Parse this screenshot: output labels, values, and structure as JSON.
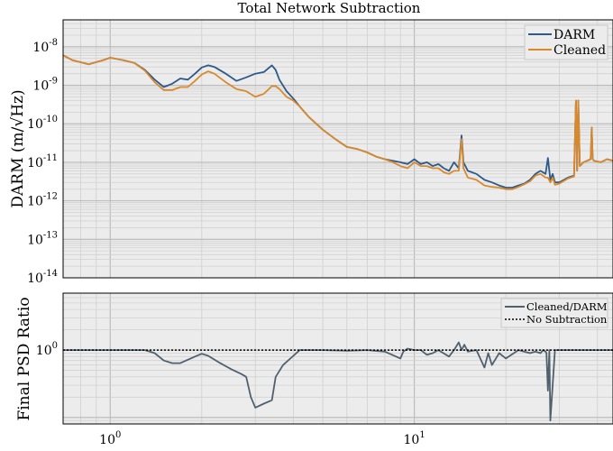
{
  "chart_data": [
    {
      "type": "line",
      "title": "Total Network Subtraction",
      "ylabel": "DARM (m/√Hz)",
      "xscale": "log",
      "yscale": "log",
      "xlim": [
        0.7,
        45
      ],
      "ylim": [
        1e-14,
        5e-08
      ],
      "grid": true,
      "legend": "top-right",
      "y_ticks": [
        {
          "v": 1e-14,
          "m": "10",
          "e": "-14"
        },
        {
          "v": 1e-13,
          "m": "10",
          "e": "-13"
        },
        {
          "v": 1e-12,
          "m": "10",
          "e": "-12"
        },
        {
          "v": 1e-11,
          "m": "10",
          "e": "-11"
        },
        {
          "v": 1e-10,
          "m": "10",
          "e": "-10"
        },
        {
          "v": 1e-09,
          "m": "10",
          "e": "-9"
        },
        {
          "v": 1e-08,
          "m": "10",
          "e": "-8"
        }
      ],
      "series": [
        {
          "name": "DARM",
          "color": "#2d5a8a",
          "x": [
            0.7,
            0.75,
            0.85,
            0.95,
            1.0,
            1.1,
            1.2,
            1.3,
            1.4,
            1.5,
            1.6,
            1.7,
            1.8,
            1.9,
            2.0,
            2.1,
            2.2,
            2.4,
            2.6,
            2.8,
            3.0,
            3.2,
            3.4,
            3.5,
            3.6,
            3.8,
            4.0,
            4.2,
            4.5,
            5.0,
            5.5,
            6.0,
            6.5,
            7.0,
            7.5,
            8.0,
            8.5,
            9.0,
            9.5,
            10.0,
            10.5,
            11.0,
            11.5,
            12.0,
            12.5,
            13.0,
            13.5,
            14.0,
            14.3,
            14.5,
            15.0,
            16.0,
            17.0,
            18.0,
            19.0,
            20.0,
            21.0,
            22.0,
            23.0,
            24.0,
            25.0,
            26.0,
            27.0,
            27.5,
            28.0,
            28.5,
            29.0,
            30.0,
            32.0,
            33.5,
            34.0,
            34.3,
            34.6,
            35.0,
            36.0,
            37.0,
            38.0,
            38.3,
            38.6,
            39.0,
            41.0,
            43.0,
            45.0
          ],
          "values": [
            6e-09,
            4.5e-09,
            3.5e-09,
            4.5e-09,
            5.2e-09,
            4.5e-09,
            3.8e-09,
            2.5e-09,
            1.4e-09,
            9e-10,
            1.1e-09,
            1.5e-09,
            1.4e-09,
            2e-09,
            2.9e-09,
            3.3e-09,
            3e-09,
            2e-09,
            1.3e-09,
            1.6e-09,
            2e-09,
            2.2e-09,
            3.3e-09,
            2.5e-09,
            1.4e-09,
            7e-10,
            4.5e-10,
            2.8e-10,
            1.5e-10,
            7e-11,
            4e-11,
            2.5e-11,
            2.2e-11,
            1.8e-11,
            1.4e-11,
            1.2e-11,
            1.1e-11,
            1e-11,
            9e-12,
            1.2e-11,
            9e-12,
            1e-11,
            8e-12,
            9e-12,
            7e-12,
            6e-12,
            1e-11,
            7e-12,
            5e-11,
            1e-11,
            6e-12,
            5e-12,
            3.5e-12,
            3e-12,
            2.5e-12,
            2.2e-12,
            2.2e-12,
            2.5e-12,
            2.8e-12,
            3.5e-12,
            5e-12,
            6e-12,
            5e-12,
            1.3e-11,
            3.5e-12,
            5e-12,
            3e-12,
            3e-12,
            4e-12,
            4.5e-12,
            4e-10,
            6e-12,
            4e-10,
            8e-12,
            1e-11,
            1.1e-11,
            1.2e-11,
            8e-11,
            1.2e-11,
            1.1e-11,
            1e-11,
            1.2e-11,
            1.1e-11
          ]
        },
        {
          "name": "Cleaned",
          "color": "#d9892c",
          "x": [
            0.7,
            0.75,
            0.85,
            0.95,
            1.0,
            1.1,
            1.2,
            1.3,
            1.4,
            1.5,
            1.6,
            1.7,
            1.8,
            1.9,
            2.0,
            2.1,
            2.2,
            2.4,
            2.6,
            2.8,
            3.0,
            3.2,
            3.4,
            3.5,
            3.6,
            3.8,
            4.0,
            4.2,
            4.5,
            5.0,
            5.5,
            6.0,
            6.5,
            7.0,
            7.5,
            8.0,
            8.5,
            9.0,
            9.5,
            10.0,
            10.5,
            11.0,
            11.5,
            12.0,
            12.5,
            13.0,
            13.5,
            14.0,
            14.3,
            14.5,
            15.0,
            16.0,
            17.0,
            18.0,
            19.0,
            20.0,
            21.0,
            22.0,
            23.0,
            24.0,
            25.0,
            26.0,
            27.0,
            27.5,
            28.0,
            28.5,
            29.0,
            30.0,
            32.0,
            33.5,
            34.0,
            34.3,
            34.6,
            35.0,
            36.0,
            37.0,
            38.0,
            38.3,
            38.6,
            39.0,
            41.0,
            43.0,
            45.0
          ],
          "values": [
            6e-09,
            4.5e-09,
            3.5e-09,
            4.5e-09,
            5.2e-09,
            4.5e-09,
            3.8e-09,
            2.4e-09,
            1.2e-09,
            7.5e-10,
            7.5e-10,
            9e-10,
            9e-10,
            1.3e-09,
            1.9e-09,
            2.3e-09,
            2e-09,
            1.2e-09,
            8e-10,
            7e-10,
            5e-10,
            6e-10,
            9.5e-10,
            9.5e-10,
            8e-10,
            5e-10,
            4e-10,
            2.8e-10,
            1.5e-10,
            7e-11,
            4e-11,
            2.5e-11,
            2.2e-11,
            1.8e-11,
            1.4e-11,
            1.2e-11,
            1e-11,
            8e-12,
            7e-12,
            1e-11,
            8e-12,
            8e-12,
            7e-12,
            7e-12,
            5.5e-12,
            5e-12,
            6e-12,
            6e-12,
            4e-11,
            7e-12,
            4e-12,
            3.5e-12,
            2.5e-12,
            2.3e-12,
            2.2e-12,
            2e-12,
            2e-12,
            2.3e-12,
            2.7e-12,
            3.2e-12,
            4.5e-12,
            5e-12,
            4e-12,
            4e-12,
            3e-12,
            4e-12,
            2.6e-12,
            2.8e-12,
            3.8e-12,
            4.3e-12,
            4e-10,
            6e-12,
            4e-10,
            8e-12,
            1e-11,
            1.1e-11,
            1.2e-11,
            8e-11,
            1.2e-11,
            1.1e-11,
            1e-11,
            1.2e-11,
            1.1e-11
          ]
        }
      ]
    },
    {
      "type": "line",
      "ylabel": "Final PSD Ratio",
      "xscale": "log",
      "yscale": "log",
      "xlim": [
        0.7,
        45
      ],
      "ylim": [
        0.08,
        7
      ],
      "grid": true,
      "legend": "top-right",
      "y_ticks": [
        {
          "v": 1,
          "m": "10",
          "e": "0"
        }
      ],
      "x_ticks": [
        {
          "v": 1,
          "m": "10",
          "e": "0"
        },
        {
          "v": 10,
          "m": "10",
          "e": "1"
        }
      ],
      "series": [
        {
          "name": "Cleaned/DARM",
          "color": "#4f606e",
          "x": [
            0.7,
            1.0,
            1.3,
            1.4,
            1.5,
            1.6,
            1.7,
            1.8,
            1.9,
            2.0,
            2.1,
            2.3,
            2.5,
            2.7,
            2.8,
            2.9,
            3.0,
            3.2,
            3.4,
            3.5,
            3.7,
            4.0,
            4.2,
            4.5,
            5.0,
            6.0,
            7.0,
            8.0,
            9.0,
            9.2,
            9.5,
            10.0,
            10.5,
            11.0,
            11.5,
            12.0,
            13.0,
            13.5,
            14.0,
            14.3,
            14.6,
            15.0,
            16.0,
            17.0,
            17.5,
            18.0,
            19.0,
            20.0,
            22.0,
            24.0,
            25.0,
            26.0,
            26.5,
            27.0,
            27.2,
            27.5,
            27.8,
            28.0,
            29.0,
            30.0,
            32.0,
            35.0,
            40.0,
            45.0
          ],
          "values": [
            1.0,
            1.0,
            1.0,
            0.9,
            0.7,
            0.64,
            0.64,
            0.72,
            0.8,
            0.88,
            0.82,
            0.64,
            0.52,
            0.44,
            0.4,
            0.2,
            0.14,
            0.16,
            0.18,
            0.4,
            0.6,
            0.82,
            1.0,
            1.0,
            1.0,
            0.98,
            1.0,
            0.95,
            0.75,
            0.95,
            1.05,
            1.0,
            1.0,
            0.85,
            0.9,
            1.0,
            0.8,
            1.0,
            1.3,
            1.0,
            1.2,
            0.95,
            1.0,
            0.55,
            0.9,
            0.6,
            0.9,
            0.75,
            1.0,
            0.9,
            0.95,
            0.9,
            1.0,
            0.95,
            0.9,
            0.25,
            1.0,
            0.09,
            1.0,
            1.0,
            1.0,
            1.0,
            1.0,
            1.0
          ]
        },
        {
          "name": "No Subtraction",
          "color": "#000000",
          "dash": "dotted",
          "x": [
            0.7,
            45
          ],
          "values": [
            1,
            1
          ]
        }
      ]
    }
  ]
}
